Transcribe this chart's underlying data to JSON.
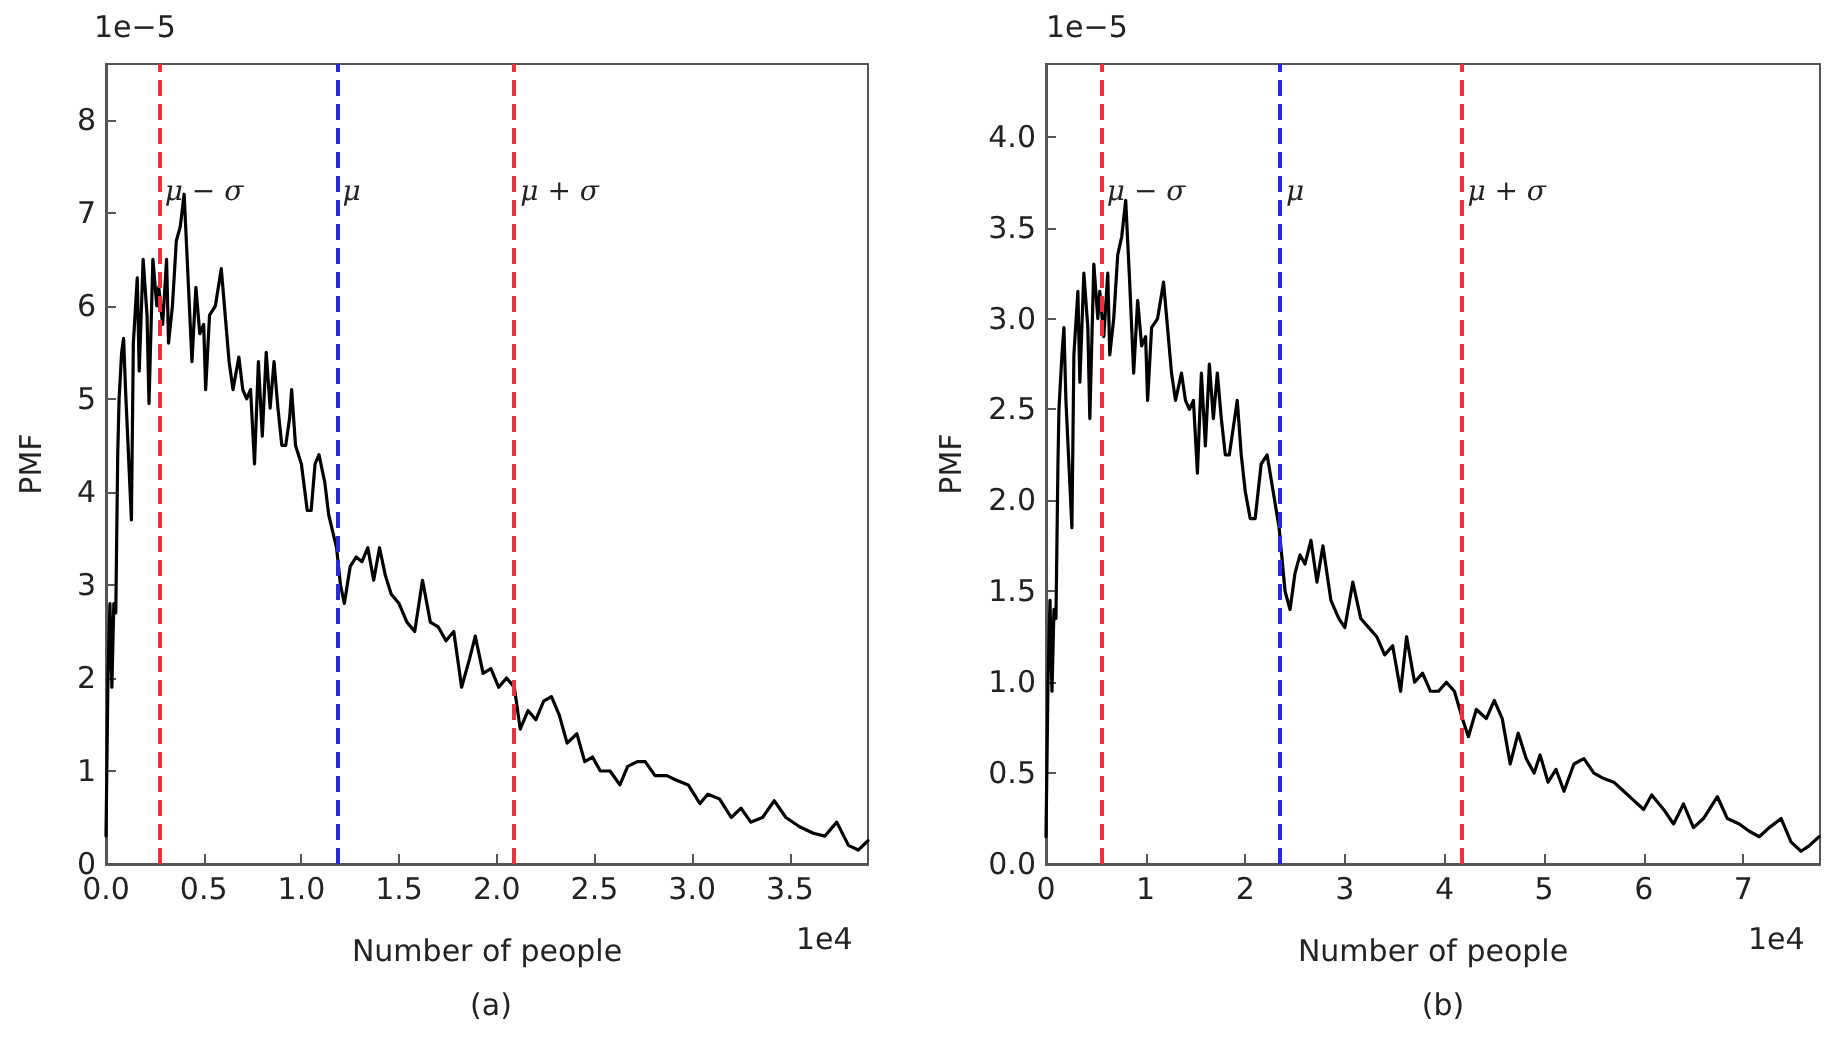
{
  "chart_data": [
    {
      "type": "line",
      "title": "(a)",
      "xlabel": "Number of people",
      "ylabel": "PMF",
      "annotations": [
        "1e−5",
        "1e4"
      ],
      "grid": false,
      "xlim": [
        0,
        3.9
      ],
      "ylim": [
        0,
        8.6
      ],
      "xticks": [
        {
          "value": 0,
          "label": "0.0"
        },
        {
          "value": 0.5,
          "label": "0.5"
        },
        {
          "value": 1,
          "label": "1.0"
        },
        {
          "value": 1.5,
          "label": "1.5"
        },
        {
          "value": 2,
          "label": "2.0"
        },
        {
          "value": 2.5,
          "label": "2.5"
        },
        {
          "value": 3,
          "label": "3.0"
        },
        {
          "value": 3.5,
          "label": "3.5"
        }
      ],
      "yticks": [
        0,
        1,
        2,
        3,
        4,
        5,
        6,
        7,
        8
      ],
      "ref_lines": [
        {
          "axis": "x",
          "value": 0.27,
          "label": "μ − σ",
          "color": "#e8333c",
          "line_style": "dashed"
        },
        {
          "axis": "x",
          "value": 1.18,
          "label": "μ",
          "color": "#2a2adb",
          "line_style": "dashed"
        },
        {
          "axis": "x",
          "value": 2.09,
          "label": "μ + σ",
          "color": "#e8333c",
          "line_style": "dashed"
        }
      ],
      "series": [
        {
          "color": "#000000",
          "x": [
            0.0,
            0.01,
            0.02,
            0.03,
            0.04,
            0.05,
            0.06,
            0.067,
            0.08,
            0.09,
            0.1,
            0.13,
            0.14,
            0.16,
            0.17,
            0.19,
            0.21,
            0.22,
            0.24,
            0.26,
            0.27,
            0.29,
            0.31,
            0.32,
            0.34,
            0.36,
            0.38,
            0.4,
            0.42,
            0.44,
            0.46,
            0.48,
            0.5,
            0.51,
            0.53,
            0.56,
            0.59,
            0.61,
            0.63,
            0.65,
            0.68,
            0.7,
            0.72,
            0.74,
            0.76,
            0.78,
            0.8,
            0.82,
            0.84,
            0.86,
            0.88,
            0.9,
            0.92,
            0.94,
            0.95,
            0.97,
            1.0,
            1.03,
            1.05,
            1.07,
            1.09,
            1.12,
            1.14,
            1.18,
            1.2,
            1.22,
            1.25,
            1.28,
            1.31,
            1.34,
            1.37,
            1.4,
            1.43,
            1.46,
            1.5,
            1.54,
            1.58,
            1.62,
            1.66,
            1.7,
            1.74,
            1.78,
            1.82,
            1.86,
            1.89,
            1.93,
            1.97,
            2.01,
            2.05,
            2.09,
            2.12,
            2.16,
            2.2,
            2.24,
            2.28,
            2.32,
            2.36,
            2.41,
            2.45,
            2.49,
            2.53,
            2.58,
            2.63,
            2.67,
            2.72,
            2.76,
            2.81,
            2.87,
            2.92,
            2.98,
            3.04,
            3.08,
            3.14,
            3.2,
            3.25,
            3.3,
            3.36,
            3.42,
            3.48,
            3.55,
            3.62,
            3.68,
            3.74,
            3.8,
            3.85,
            3.9
          ],
          "values": [
            0.3,
            2.0,
            2.8,
            1.9,
            2.8,
            2.7,
            4.4,
            5.0,
            5.5,
            5.65,
            5.1,
            3.7,
            5.6,
            6.3,
            5.3,
            6.5,
            5.9,
            4.95,
            6.5,
            6.0,
            6.2,
            5.8,
            6.5,
            5.6,
            6.0,
            6.7,
            6.85,
            7.2,
            6.3,
            5.4,
            6.2,
            5.7,
            5.8,
            5.1,
            5.9,
            6.0,
            6.4,
            5.9,
            5.4,
            5.1,
            5.45,
            5.1,
            5.0,
            5.1,
            4.3,
            5.4,
            4.6,
            5.5,
            4.9,
            5.4,
            4.9,
            4.5,
            4.5,
            4.8,
            5.1,
            4.5,
            4.3,
            3.8,
            3.8,
            4.3,
            4.4,
            4.1,
            3.75,
            3.4,
            3.0,
            2.8,
            3.2,
            3.3,
            3.25,
            3.4,
            3.05,
            3.4,
            3.1,
            2.9,
            2.8,
            2.6,
            2.5,
            3.05,
            2.6,
            2.55,
            2.4,
            2.5,
            1.9,
            2.2,
            2.45,
            2.05,
            2.1,
            1.9,
            2.0,
            1.9,
            1.45,
            1.65,
            1.55,
            1.75,
            1.8,
            1.6,
            1.3,
            1.4,
            1.1,
            1.15,
            1.0,
            1.0,
            0.85,
            1.05,
            1.1,
            1.1,
            0.95,
            0.95,
            0.9,
            0.85,
            0.65,
            0.75,
            0.7,
            0.5,
            0.6,
            0.45,
            0.5,
            0.68,
            0.5,
            0.4,
            0.33,
            0.3,
            0.45,
            0.2,
            0.15,
            0.25
          ]
        }
      ]
    },
    {
      "type": "line",
      "title": "(b)",
      "xlabel": "Number of people",
      "ylabel": "PMF",
      "annotations": [
        "1e−5",
        "1e4"
      ],
      "grid": false,
      "xlim": [
        0,
        7.77
      ],
      "ylim": [
        0,
        4.4
      ],
      "xticks": [
        0,
        1,
        2,
        3,
        4,
        5,
        6,
        7
      ],
      "yticks": [
        {
          "value": 0,
          "label": "0.0"
        },
        {
          "value": 0.5,
          "label": "0.5"
        },
        {
          "value": 1,
          "label": "1.0"
        },
        {
          "value": 1.5,
          "label": "1.5"
        },
        {
          "value": 2,
          "label": "2.0"
        },
        {
          "value": 2.5,
          "label": "2.5"
        },
        {
          "value": 3,
          "label": "3.0"
        },
        {
          "value": 3.5,
          "label": "3.5"
        },
        {
          "value": 4,
          "label": "4.0"
        }
      ],
      "ref_lines": [
        {
          "axis": "x",
          "value": 0.55,
          "label": "μ − σ",
          "color": "#e8333c",
          "line_style": "dashed"
        },
        {
          "axis": "x",
          "value": 2.35,
          "label": "μ",
          "color": "#2a2adb",
          "line_style": "dashed"
        },
        {
          "axis": "x",
          "value": 4.17,
          "label": "μ + σ",
          "color": "#e8333c",
          "line_style": "dashed"
        }
      ],
      "series": [
        {
          "color": "#000000",
          "x": [
            0.0,
            0.02,
            0.04,
            0.06,
            0.08,
            0.1,
            0.12,
            0.13,
            0.16,
            0.18,
            0.2,
            0.26,
            0.28,
            0.32,
            0.34,
            0.38,
            0.42,
            0.44,
            0.48,
            0.52,
            0.54,
            0.58,
            0.62,
            0.64,
            0.68,
            0.72,
            0.76,
            0.8,
            0.84,
            0.88,
            0.92,
            0.96,
            1.0,
            1.02,
            1.06,
            1.12,
            1.18,
            1.22,
            1.26,
            1.3,
            1.36,
            1.4,
            1.44,
            1.48,
            1.52,
            1.56,
            1.6,
            1.64,
            1.68,
            1.72,
            1.76,
            1.8,
            1.84,
            1.88,
            1.92,
            1.96,
            2.0,
            2.05,
            2.1,
            2.16,
            2.22,
            2.28,
            2.34,
            2.4,
            2.45,
            2.5,
            2.55,
            2.6,
            2.66,
            2.72,
            2.78,
            2.86,
            2.94,
            3.0,
            3.08,
            3.16,
            3.24,
            3.32,
            3.4,
            3.48,
            3.56,
            3.62,
            3.7,
            3.78,
            3.86,
            3.94,
            4.02,
            4.1,
            4.18,
            4.24,
            4.32,
            4.42,
            4.5,
            4.58,
            4.66,
            4.74,
            4.82,
            4.9,
            4.96,
            5.04,
            5.12,
            5.2,
            5.3,
            5.4,
            5.5,
            5.6,
            5.7,
            5.8,
            5.9,
            6.0,
            6.08,
            6.2,
            6.3,
            6.4,
            6.5,
            6.6,
            6.74,
            6.84,
            6.96,
            7.06,
            7.16,
            7.26,
            7.38,
            7.48,
            7.58,
            7.66,
            7.76
          ],
          "values": [
            0.15,
            1.0,
            1.45,
            0.95,
            1.4,
            1.35,
            2.2,
            2.5,
            2.8,
            2.95,
            2.55,
            1.85,
            2.8,
            3.15,
            2.65,
            3.25,
            2.95,
            2.45,
            3.3,
            3.0,
            3.15,
            2.9,
            3.25,
            2.8,
            3.0,
            3.35,
            3.45,
            3.65,
            3.2,
            2.7,
            3.1,
            2.85,
            2.9,
            2.55,
            2.95,
            3.0,
            3.2,
            2.95,
            2.7,
            2.55,
            2.7,
            2.55,
            2.5,
            2.55,
            2.15,
            2.7,
            2.3,
            2.75,
            2.45,
            2.7,
            2.45,
            2.25,
            2.25,
            2.4,
            2.55,
            2.25,
            2.05,
            1.9,
            1.9,
            2.2,
            2.25,
            2.05,
            1.85,
            1.5,
            1.4,
            1.6,
            1.7,
            1.65,
            1.78,
            1.55,
            1.75,
            1.45,
            1.35,
            1.3,
            1.55,
            1.35,
            1.3,
            1.25,
            1.15,
            1.2,
            0.95,
            1.25,
            1.0,
            1.05,
            0.95,
            0.95,
            1.0,
            0.95,
            0.8,
            0.7,
            0.85,
            0.8,
            0.9,
            0.8,
            0.55,
            0.72,
            0.58,
            0.5,
            0.6,
            0.45,
            0.52,
            0.4,
            0.55,
            0.58,
            0.5,
            0.47,
            0.45,
            0.4,
            0.35,
            0.3,
            0.38,
            0.3,
            0.22,
            0.33,
            0.2,
            0.25,
            0.37,
            0.25,
            0.22,
            0.18,
            0.15,
            0.2,
            0.25,
            0.12,
            0.07,
            0.1,
            0.15
          ]
        }
      ]
    }
  ]
}
